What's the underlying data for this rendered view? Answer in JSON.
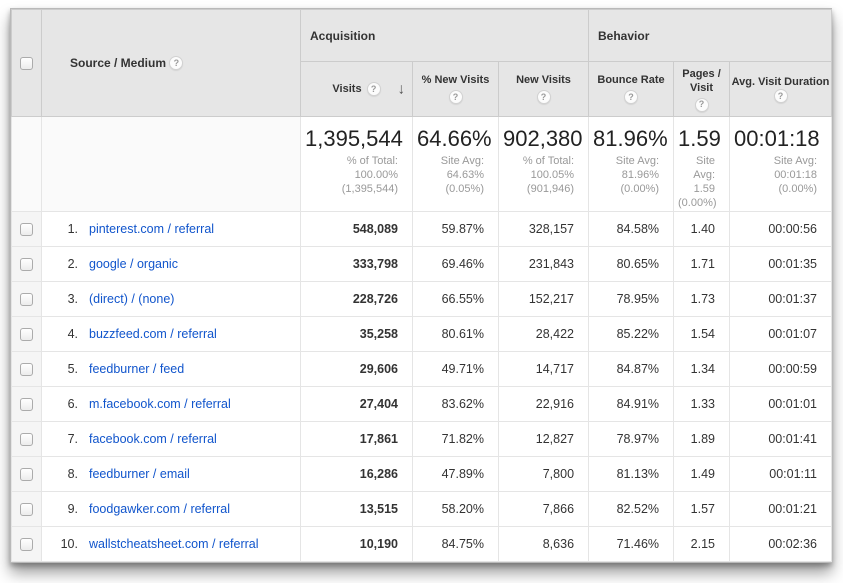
{
  "icons": {
    "help": "?",
    "sort_desc": "↓"
  },
  "colors": {
    "header_bg": "#e6e6e6",
    "link_blue": "#1155cc",
    "subtext_gray": "#999999",
    "border_gray": "#cccccc",
    "row_border": "#e5e5e5"
  },
  "header": {
    "source_medium": "Source / Medium",
    "groups": {
      "acquisition": "Acquisition",
      "behavior": "Behavior"
    },
    "columns": {
      "visits": "Visits",
      "pct_new_visits": "% New Visits",
      "new_visits": "New Visits",
      "bounce_rate": "Bounce Rate",
      "pages_visit": "Pages / Visit",
      "avg_duration": "Avg. Visit Duration"
    }
  },
  "summary": {
    "visits": {
      "value": "1,395,544",
      "sub": "% of Total:\n100.00%\n(1,395,544)"
    },
    "pct_new_visits": {
      "value": "64.66%",
      "sub": "Site Avg:\n64.63%\n(0.05%)"
    },
    "new_visits": {
      "value": "902,380",
      "sub": "% of Total:\n100.05%\n(901,946)"
    },
    "bounce_rate": {
      "value": "81.96%",
      "sub": "Site Avg:\n81.96%\n(0.00%)"
    },
    "pages_visit": {
      "value": "1.59",
      "sub": "Site\nAvg:\n1.59\n(0.00%)"
    },
    "avg_duration": {
      "value": "00:01:18",
      "sub": "Site Avg:\n00:01:18\n(0.00%)"
    }
  },
  "rows": [
    {
      "rank": "1.",
      "source": "pinterest.com / referral",
      "visits": "548,089",
      "pct_new_visits": "59.87%",
      "new_visits": "328,157",
      "bounce_rate": "84.58%",
      "pages_visit": "1.40",
      "avg_duration": "00:00:56"
    },
    {
      "rank": "2.",
      "source": "google / organic",
      "visits": "333,798",
      "pct_new_visits": "69.46%",
      "new_visits": "231,843",
      "bounce_rate": "80.65%",
      "pages_visit": "1.71",
      "avg_duration": "00:01:35"
    },
    {
      "rank": "3.",
      "source": "(direct) / (none)",
      "visits": "228,726",
      "pct_new_visits": "66.55%",
      "new_visits": "152,217",
      "bounce_rate": "78.95%",
      "pages_visit": "1.73",
      "avg_duration": "00:01:37"
    },
    {
      "rank": "4.",
      "source": "buzzfeed.com / referral",
      "visits": "35,258",
      "pct_new_visits": "80.61%",
      "new_visits": "28,422",
      "bounce_rate": "85.22%",
      "pages_visit": "1.54",
      "avg_duration": "00:01:07"
    },
    {
      "rank": "5.",
      "source": "feedburner / feed",
      "visits": "29,606",
      "pct_new_visits": "49.71%",
      "new_visits": "14,717",
      "bounce_rate": "84.87%",
      "pages_visit": "1.34",
      "avg_duration": "00:00:59"
    },
    {
      "rank": "6.",
      "source": "m.facebook.com / referral",
      "visits": "27,404",
      "pct_new_visits": "83.62%",
      "new_visits": "22,916",
      "bounce_rate": "84.91%",
      "pages_visit": "1.33",
      "avg_duration": "00:01:01"
    },
    {
      "rank": "7.",
      "source": "facebook.com / referral",
      "visits": "17,861",
      "pct_new_visits": "71.82%",
      "new_visits": "12,827",
      "bounce_rate": "78.97%",
      "pages_visit": "1.89",
      "avg_duration": "00:01:41"
    },
    {
      "rank": "8.",
      "source": "feedburner / email",
      "visits": "16,286",
      "pct_new_visits": "47.89%",
      "new_visits": "7,800",
      "bounce_rate": "81.13%",
      "pages_visit": "1.49",
      "avg_duration": "00:01:11"
    },
    {
      "rank": "9.",
      "source": "foodgawker.com / referral",
      "visits": "13,515",
      "pct_new_visits": "58.20%",
      "new_visits": "7,866",
      "bounce_rate": "82.52%",
      "pages_visit": "1.57",
      "avg_duration": "00:01:21"
    },
    {
      "rank": "10.",
      "source": "wallstcheatsheet.com / referral",
      "visits": "10,190",
      "pct_new_visits": "84.75%",
      "new_visits": "8,636",
      "bounce_rate": "71.46%",
      "pages_visit": "2.15",
      "avg_duration": "00:02:36"
    }
  ]
}
